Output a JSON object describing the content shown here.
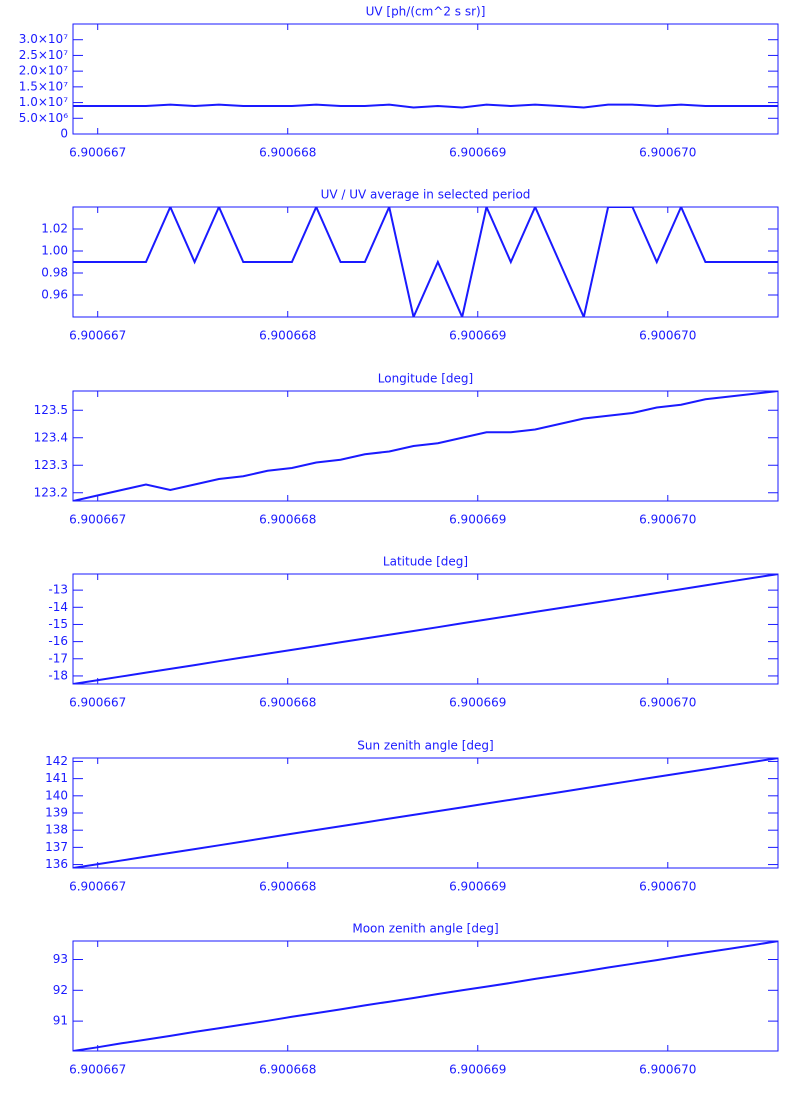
{
  "chart_data": [
    {
      "type": "line",
      "title": "UV [ph/(cm^2 s sr)]",
      "color": "#1a1aff",
      "x": [
        6.90066687,
        6.900666998,
        6.900667126,
        6.900667254,
        6.900667382,
        6.90066751,
        6.900667638,
        6.900667766,
        6.900667894,
        6.900668022,
        6.90066815,
        6.900668278,
        6.900668406,
        6.900668534,
        6.900668662,
        6.90066879,
        6.900668918,
        6.900669046,
        6.900669174,
        6.900669302,
        6.90066943,
        6.900669558,
        6.900669686,
        6.900669814,
        6.900669942,
        6.90067007,
        6.900670198,
        6.900670326,
        6.900670454,
        6.900670582
      ],
      "values": [
        8900000,
        8900000,
        8900000,
        8900000,
        9350000,
        8900000,
        9350000,
        8900000,
        8900000,
        8900000,
        9350000,
        8900000,
        8900000,
        9350000,
        8450000,
        8900000,
        8450000,
        9350000,
        8900000,
        9350000,
        8900000,
        8450000,
        9350000,
        9350000,
        8900000,
        9350000,
        8900000,
        8900000,
        8900000,
        8900000
      ],
      "xlim": [
        6.90066687,
        6.90067058
      ],
      "xticks": [
        6.900667,
        6.900668,
        6.900669,
        {
          "value": 6.90067,
          "label": "6.900670"
        }
      ],
      "ylim": [
        0,
        35000000
      ],
      "yticks": [
        0,
        {
          "value": 5000000,
          "label": "5.0×10⁶"
        },
        {
          "value": 10000000,
          "label": "1.0×10⁷"
        },
        {
          "value": 15000000,
          "label": "1.5×10⁷"
        },
        {
          "value": 20000000,
          "label": "2.0×10⁷"
        },
        {
          "value": 25000000,
          "label": "2.5×10⁷"
        },
        {
          "value": 30000000,
          "label": "3.0×10⁷"
        }
      ]
    },
    {
      "type": "line",
      "title": "UV / UV average in selected period",
      "color": "#1a1aff",
      "x": [
        6.90066687,
        6.900666998,
        6.900667126,
        6.900667254,
        6.900667382,
        6.90066751,
        6.900667638,
        6.900667766,
        6.900667894,
        6.900668022,
        6.90066815,
        6.900668278,
        6.900668406,
        6.900668534,
        6.900668662,
        6.90066879,
        6.900668918,
        6.900669046,
        6.900669174,
        6.900669302,
        6.90066943,
        6.900669558,
        6.900669686,
        6.900669814,
        6.900669942,
        6.90067007,
        6.900670198,
        6.900670326,
        6.900670454,
        6.900670582
      ],
      "values": [
        0.99,
        0.99,
        0.99,
        0.99,
        1.04,
        0.99,
        1.04,
        0.99,
        0.99,
        0.99,
        1.04,
        0.99,
        0.99,
        1.04,
        0.94,
        0.99,
        0.94,
        1.04,
        0.99,
        1.04,
        0.99,
        0.94,
        1.04,
        1.04,
        0.99,
        1.04,
        0.99,
        0.99,
        0.99,
        0.99
      ],
      "xlim": [
        6.90066687,
        6.90067058
      ],
      "xticks": [
        6.900667,
        6.900668,
        6.900669,
        {
          "value": 6.90067,
          "label": "6.900670"
        }
      ],
      "ylim": [
        0.94,
        1.04
      ],
      "yticks": [
        0.96,
        0.98,
        {
          "value": 1,
          "label": "1.00"
        },
        1.02
      ]
    },
    {
      "type": "line",
      "title": "Longitude [deg]",
      "color": "#1a1aff",
      "x": [
        6.90066687,
        6.900666998,
        6.900667126,
        6.900667254,
        6.900667382,
        6.90066751,
        6.900667638,
        6.900667766,
        6.900667894,
        6.900668022,
        6.90066815,
        6.900668278,
        6.900668406,
        6.900668534,
        6.900668662,
        6.90066879,
        6.900668918,
        6.900669046,
        6.900669174,
        6.900669302,
        6.90066943,
        6.900669558,
        6.900669686,
        6.900669814,
        6.900669942,
        6.90067007,
        6.900670198,
        6.900670326,
        6.900670454,
        6.900670582
      ],
      "values": [
        123.17,
        123.19,
        123.21,
        123.23,
        123.21,
        123.23,
        123.25,
        123.26,
        123.28,
        123.29,
        123.31,
        123.32,
        123.34,
        123.35,
        123.37,
        123.38,
        123.4,
        123.42,
        123.42,
        123.43,
        123.45,
        123.47,
        123.48,
        123.49,
        123.51,
        123.52,
        123.54,
        123.55,
        123.56,
        123.57
      ],
      "xlim": [
        6.90066687,
        6.90067058
      ],
      "xticks": [
        6.900667,
        6.900668,
        6.900669,
        {
          "value": 6.90067,
          "label": "6.900670"
        }
      ],
      "ylim": [
        123.17,
        123.57
      ],
      "yticks": [
        123.2,
        123.3,
        123.4,
        123.5
      ]
    },
    {
      "type": "line",
      "title": "Latitude [deg]",
      "color": "#1a1aff",
      "x": [
        6.90066687,
        6.900666998,
        6.900667126,
        6.900667254,
        6.900667382,
        6.90066751,
        6.900667638,
        6.900667766,
        6.900667894,
        6.900668022,
        6.90066815,
        6.900668278,
        6.900668406,
        6.900668534,
        6.900668662,
        6.90066879,
        6.900668918,
        6.900669046,
        6.900669174,
        6.900669302,
        6.90066943,
        6.900669558,
        6.900669686,
        6.900669814,
        6.900669942,
        6.90067007,
        6.900670198,
        6.900670326,
        6.900670454,
        6.900670582
      ],
      "values": [
        -18.47,
        -18.25,
        -18.03,
        -17.81,
        -17.59,
        -17.37,
        -17.14,
        -16.92,
        -16.7,
        -16.48,
        -16.26,
        -16.04,
        -15.82,
        -15.6,
        -15.38,
        -15.16,
        -14.93,
        -14.71,
        -14.49,
        -14.27,
        -14.05,
        -13.83,
        -13.61,
        -13.39,
        -13.17,
        -12.95,
        -12.72,
        -12.5,
        -12.28,
        -12.06
      ],
      "xlim": [
        6.90066687,
        6.90067058
      ],
      "xticks": [
        6.900667,
        6.900668,
        6.900669,
        {
          "value": 6.90067,
          "label": "6.900670"
        }
      ],
      "ylim": [
        -18.47,
        -12.06
      ],
      "yticks": [
        -18,
        -17,
        -16,
        -15,
        -14,
        -13
      ]
    },
    {
      "type": "line",
      "title": "Sun zenith angle [deg]",
      "color": "#1a1aff",
      "x": [
        6.90066687,
        6.900666998,
        6.900667126,
        6.900667254,
        6.900667382,
        6.90066751,
        6.900667638,
        6.900667766,
        6.900667894,
        6.900668022,
        6.90066815,
        6.900668278,
        6.900668406,
        6.900668534,
        6.900668662,
        6.90066879,
        6.900668918,
        6.900669046,
        6.900669174,
        6.900669302,
        6.90066943,
        6.900669558,
        6.900669686,
        6.900669814,
        6.900669942,
        6.90067007,
        6.900670198,
        6.900670326,
        6.900670454,
        6.900670582
      ],
      "values": [
        135.8,
        136.02,
        136.24,
        136.46,
        136.68,
        136.9,
        137.12,
        137.34,
        137.57,
        137.79,
        138.01,
        138.23,
        138.45,
        138.67,
        138.89,
        139.11,
        139.33,
        139.55,
        139.77,
        139.99,
        140.21,
        140.43,
        140.66,
        140.88,
        141.1,
        141.32,
        141.54,
        141.76,
        141.98,
        142.2
      ],
      "xlim": [
        6.90066687,
        6.90067058
      ],
      "xticks": [
        6.900667,
        6.900668,
        6.900669,
        {
          "value": 6.90067,
          "label": "6.900670"
        }
      ],
      "ylim": [
        135.8,
        142.2
      ],
      "yticks": [
        136,
        137,
        138,
        139,
        140,
        141,
        142
      ]
    },
    {
      "type": "line",
      "title": "Moon zenith angle [deg]",
      "color": "#1a1aff",
      "x": [
        6.90066687,
        6.900666998,
        6.900667126,
        6.900667254,
        6.900667382,
        6.90066751,
        6.900667638,
        6.900667766,
        6.900667894,
        6.900668022,
        6.90066815,
        6.900668278,
        6.900668406,
        6.900668534,
        6.900668662,
        6.90066879,
        6.900668918,
        6.900669046,
        6.900669174,
        6.900669302,
        6.90066943,
        6.900669558,
        6.900669686,
        6.900669814,
        6.900669942,
        6.90067007,
        6.900670198,
        6.900670326,
        6.900670454,
        6.900670582
      ],
      "values": [
        90.03,
        90.15,
        90.28,
        90.4,
        90.52,
        90.65,
        90.77,
        90.89,
        91.01,
        91.14,
        91.26,
        91.38,
        91.51,
        91.63,
        91.75,
        91.88,
        92,
        92.12,
        92.24,
        92.37,
        92.49,
        92.61,
        92.74,
        92.86,
        92.98,
        93.11,
        93.23,
        93.35,
        93.47,
        93.6
      ],
      "xlim": [
        6.90066687,
        6.90067058
      ],
      "xticks": [
        6.900667,
        6.900668,
        6.900669,
        {
          "value": 6.90067,
          "label": "6.900670"
        }
      ],
      "ylim": [
        90.03,
        93.6
      ],
      "yticks": [
        91,
        92,
        93
      ]
    }
  ]
}
